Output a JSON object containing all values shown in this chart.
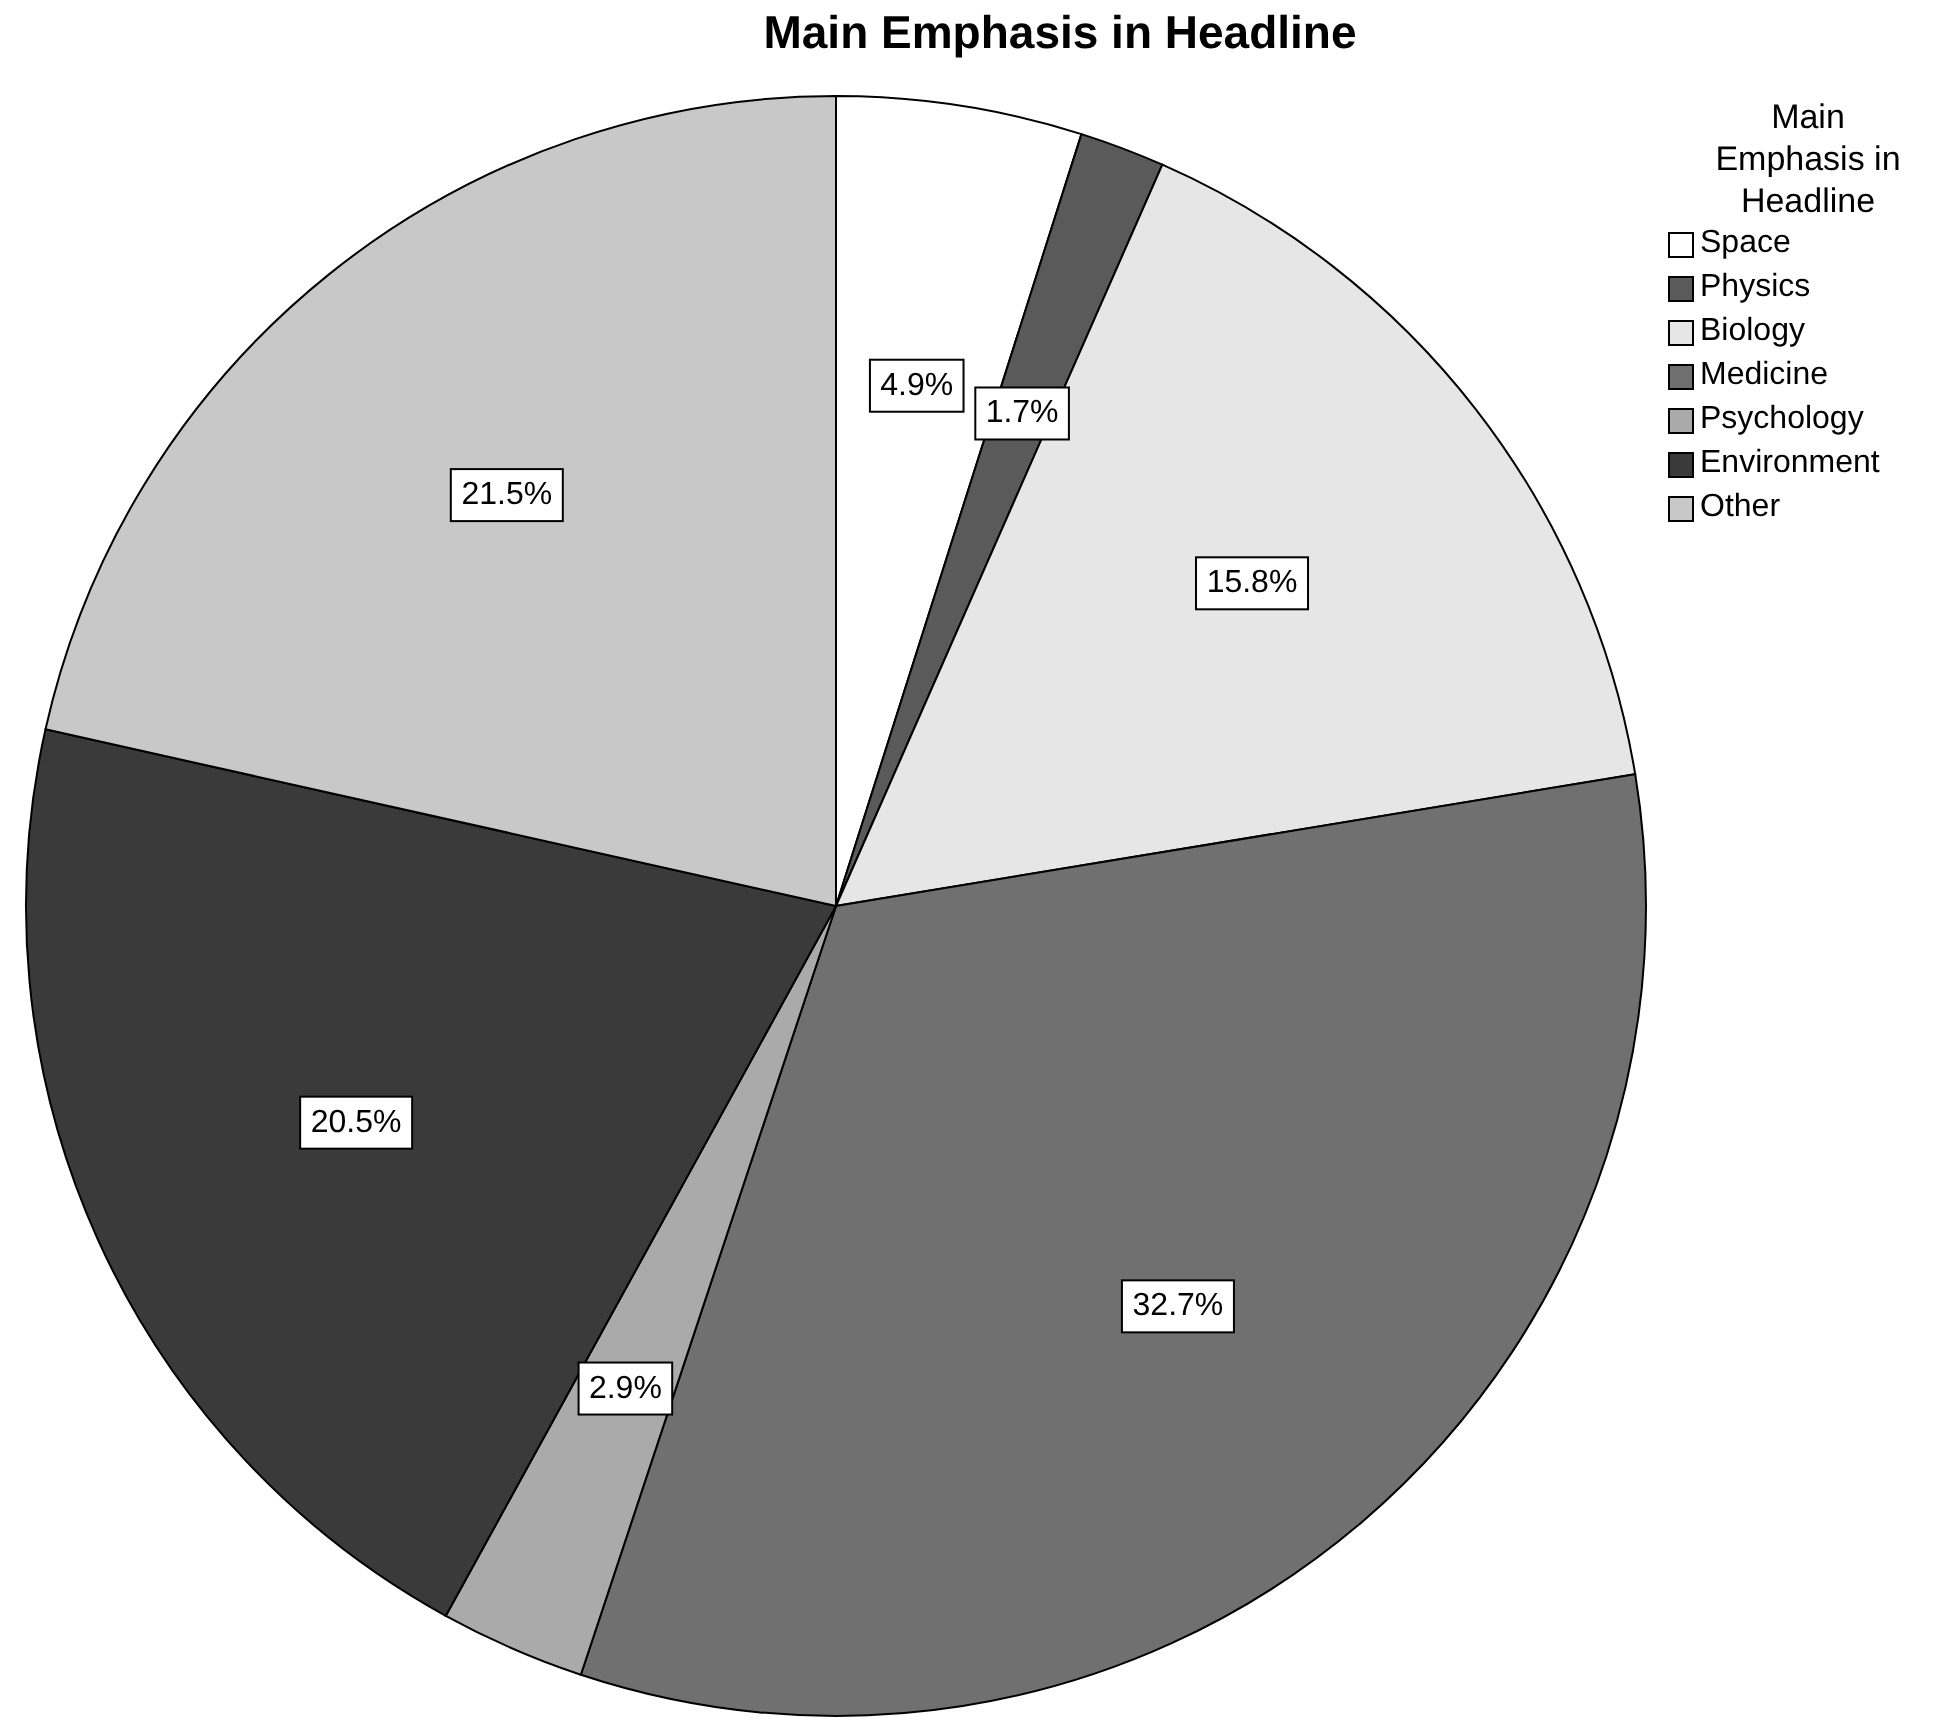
{
  "chart_data": {
    "type": "pie",
    "title": "Main Emphasis in Headline",
    "legend_title": "Main Emphasis in Headline",
    "categories": [
      "Space",
      "Physics",
      "Biology",
      "Medicine",
      "Psychology",
      "Environment",
      "Other"
    ],
    "values": [
      4.9,
      1.7,
      15.8,
      32.7,
      2.9,
      20.5,
      21.5
    ],
    "colors": [
      "#ffffff",
      "#5a5a5a",
      "#e6e6e6",
      "#707070",
      "#aaaaaa",
      "#3a3a3a",
      "#c8c8c8"
    ],
    "value_labels": [
      "4.9%",
      "1.7%",
      "15.8%",
      "32.7%",
      "2.9%",
      "20.5%",
      "21.5%"
    ],
    "legend": "top right"
  }
}
